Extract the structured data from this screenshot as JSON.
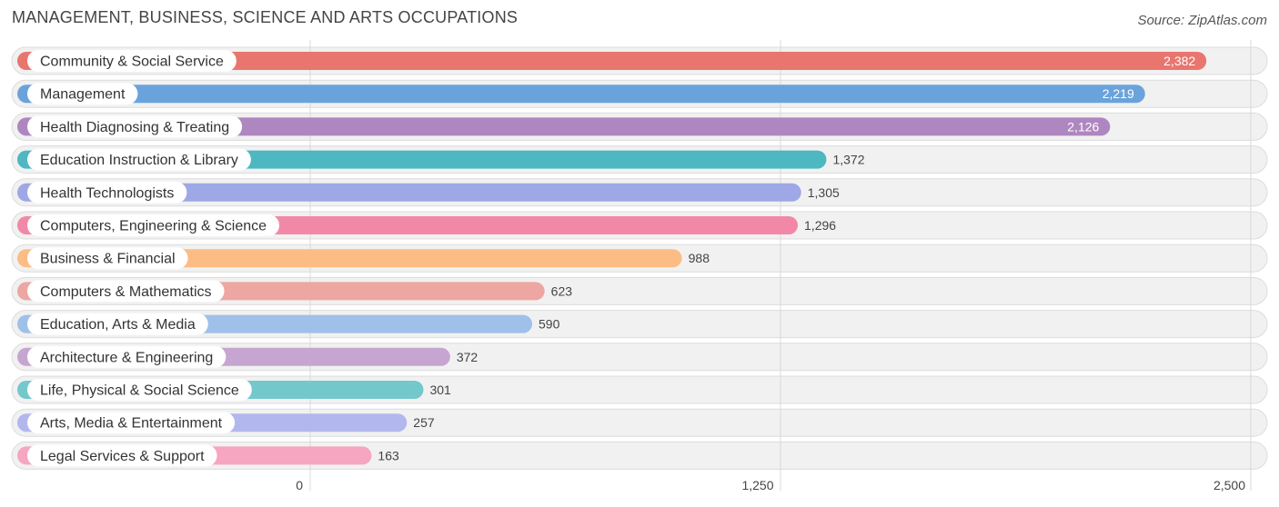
{
  "title": "MANAGEMENT, BUSINESS, SCIENCE AND ARTS OCCUPATIONS",
  "source": "Source: ZipAtlas.com",
  "chart_data": {
    "type": "bar",
    "orientation": "horizontal",
    "title": "MANAGEMENT, BUSINESS, SCIENCE AND ARTS OCCUPATIONS",
    "xlim": [
      0,
      2500
    ],
    "ticks": [
      0,
      1250,
      2500
    ],
    "tick_labels": [
      "0",
      "1,250",
      "2,500"
    ],
    "grid": true,
    "categories": [
      "Community & Social Service",
      "Management",
      "Health Diagnosing & Treating",
      "Education Instruction & Library",
      "Health Technologists",
      "Computers, Engineering & Science",
      "Business & Financial",
      "Computers & Mathematics",
      "Education, Arts & Media",
      "Architecture & Engineering",
      "Life, Physical & Social Science",
      "Arts, Media & Entertainment",
      "Legal Services & Support"
    ],
    "values": [
      2382,
      2219,
      2126,
      1372,
      1305,
      1296,
      988,
      623,
      590,
      372,
      301,
      257,
      163
    ],
    "value_labels": [
      "2,382",
      "2,219",
      "2,126",
      "1,372",
      "1,305",
      "1,296",
      "988",
      "623",
      "590",
      "372",
      "301",
      "257",
      "163"
    ],
    "colors": [
      "#e8766f",
      "#6aa3dc",
      "#ae86c0",
      "#4db7c2",
      "#9ea8e6",
      "#f288a8",
      "#fbbd84",
      "#eea6a2",
      "#9fc0e8",
      "#c6a6d0",
      "#73c8cc",
      "#b2b8ee",
      "#f6a6c0"
    ]
  }
}
